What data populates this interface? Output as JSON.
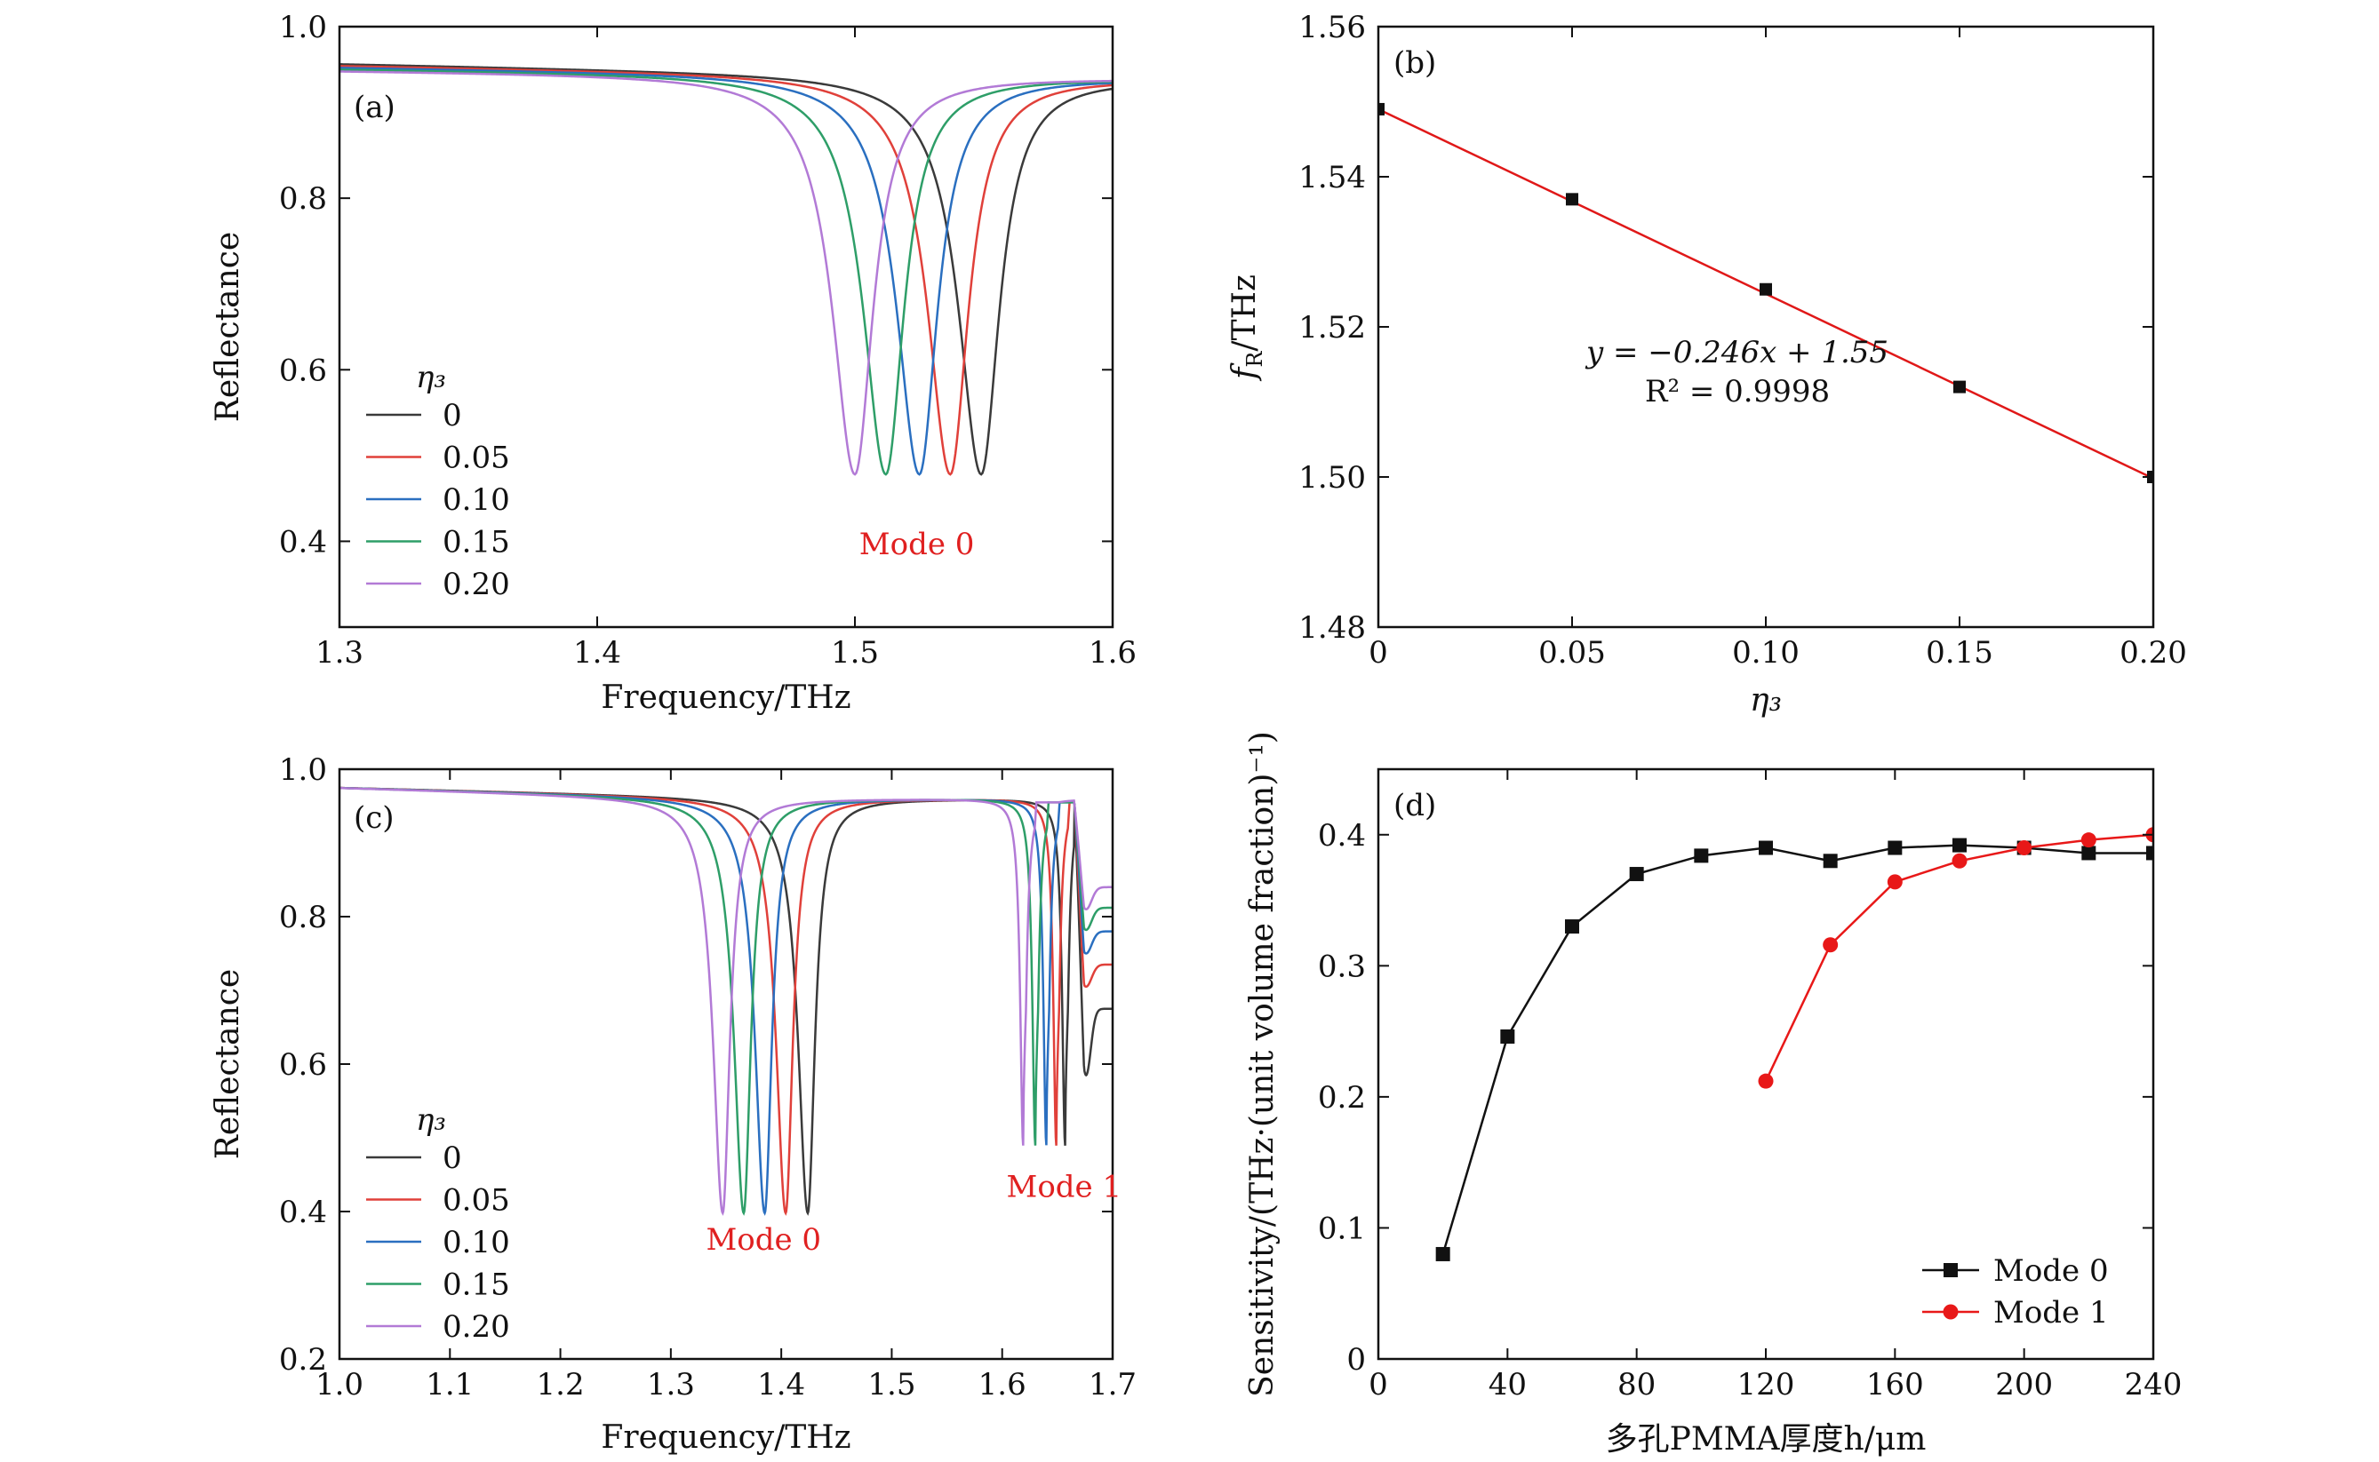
{
  "chart_data": [
    {
      "panel": "(a)",
      "type": "line",
      "xlabel": "Frequency/THz",
      "ylabel": "Reflectance",
      "xlim": [
        1.3,
        1.6
      ],
      "ylim": [
        0.3,
        1.0
      ],
      "xticks": [
        1.3,
        1.4,
        1.5,
        1.6
      ],
      "xtick_labels": [
        "1.3",
        "1.4",
        "1.5",
        "1.6"
      ],
      "yticks": [
        0.4,
        0.6,
        0.8,
        1.0
      ],
      "ytick_labels": [
        "0.4",
        "0.6",
        "0.8",
        "1.0"
      ],
      "legend_title": "η₃",
      "legend_position": "bottom-left",
      "annotations": [
        {
          "text": "Mode 0",
          "x": 1.524,
          "y": 0.385,
          "color": "#e02020"
        }
      ],
      "series": [
        {
          "name": "0",
          "color": "#3a3a3a",
          "base_left": 0.957,
          "base_right": 0.94,
          "dip_center": 1.549,
          "dip_min": 0.478,
          "width_left": 0.0105,
          "width_right": 0.0085
        },
        {
          "name": "0.05",
          "color": "#e0403a",
          "base_left": 0.955,
          "base_right": 0.94,
          "dip_center": 1.537,
          "dip_min": 0.478,
          "width_left": 0.0105,
          "width_right": 0.0085
        },
        {
          "name": "0.10",
          "color": "#2a6fc0",
          "base_left": 0.953,
          "base_right": 0.94,
          "dip_center": 1.525,
          "dip_min": 0.478,
          "width_left": 0.0105,
          "width_right": 0.0085
        },
        {
          "name": "0.15",
          "color": "#2e9e68",
          "base_left": 0.951,
          "base_right": 0.94,
          "dip_center": 1.512,
          "dip_min": 0.478,
          "width_left": 0.0105,
          "width_right": 0.0085
        },
        {
          "name": "0.20",
          "color": "#b27ad6",
          "base_left": 0.949,
          "base_right": 0.94,
          "dip_center": 1.5,
          "dip_min": 0.478,
          "width_left": 0.0105,
          "width_right": 0.0085
        }
      ]
    },
    {
      "panel": "(b)",
      "type": "scatter",
      "xlabel": "η₃",
      "ylabel_main": "f",
      "ylabel_sub": "R",
      "ylabel_unit": "/THz",
      "xlim": [
        0,
        0.2
      ],
      "ylim": [
        1.48,
        1.56
      ],
      "xticks": [
        0,
        0.05,
        0.1,
        0.15,
        0.2
      ],
      "xtick_labels": [
        "0",
        "0.05",
        "0.10",
        "0.15",
        "0.20"
      ],
      "yticks": [
        1.48,
        1.5,
        1.52,
        1.54,
        1.56
      ],
      "ytick_labels": [
        "1.48",
        "1.50",
        "1.52",
        "1.54",
        "1.56"
      ],
      "x": [
        0,
        0.05,
        0.1,
        0.15,
        0.2
      ],
      "y": [
        1.549,
        1.537,
        1.525,
        1.512,
        1.5
      ],
      "fit_line": {
        "slope": -0.246,
        "intercept": 1.549,
        "color": "#e01818"
      },
      "equation": "y = −0.246x + 1.55",
      "r2_label": "R² = 0.9998"
    },
    {
      "panel": "(c)",
      "type": "line",
      "xlabel": "Frequency/THz",
      "ylabel": "Reflectance",
      "xlim": [
        1.0,
        1.7
      ],
      "ylim": [
        0.2,
        1.0
      ],
      "xticks": [
        1.0,
        1.1,
        1.2,
        1.3,
        1.4,
        1.5,
        1.6,
        1.7
      ],
      "xtick_labels": [
        "1.0",
        "1.1",
        "1.2",
        "1.3",
        "1.4",
        "1.5",
        "1.6",
        "1.7"
      ],
      "yticks": [
        0.2,
        0.4,
        0.6,
        0.8,
        1.0
      ],
      "ytick_labels": [
        "0.2",
        "0.4",
        "0.6",
        "0.8",
        "1.0"
      ],
      "legend_title": "η₃",
      "legend_position": "bottom-left",
      "annotations": [
        {
          "text": "Mode 0",
          "x": 1.384,
          "y": 0.348,
          "color": "#e02020"
        },
        {
          "text": "Mode 1",
          "x": 1.656,
          "y": 0.42,
          "color": "#e02020"
        }
      ],
      "series": [
        {
          "name": "0",
          "color": "#3a3a3a",
          "dip0_center": 1.424,
          "dip1_center": 1.657,
          "tail_end": 0.675
        },
        {
          "name": "0.05",
          "color": "#e0403a",
          "dip0_center": 1.404,
          "dip1_center": 1.649,
          "tail_end": 0.735
        },
        {
          "name": "0.10",
          "color": "#2a6fc0",
          "dip0_center": 1.385,
          "dip1_center": 1.64,
          "tail_end": 0.78
        },
        {
          "name": "0.15",
          "color": "#2e9e68",
          "dip0_center": 1.366,
          "dip1_center": 1.63,
          "tail_end": 0.812
        },
        {
          "name": "0.20",
          "color": "#b27ad6",
          "dip0_center": 1.347,
          "dip1_center": 1.619,
          "tail_end": 0.84
        }
      ],
      "dip0_min": 0.398,
      "dip1_min": 0.49
    },
    {
      "panel": "(d)",
      "type": "line",
      "xlabel": "多孔PMMA厚度h/μm",
      "ylabel": "Sensitivity/(THz·(unit volume fraction)⁻¹)",
      "xlim": [
        0,
        240
      ],
      "ylim": [
        0,
        0.45
      ],
      "xticks": [
        0,
        40,
        80,
        120,
        160,
        200,
        240
      ],
      "xtick_labels": [
        "0",
        "40",
        "80",
        "120",
        "160",
        "200",
        "240"
      ],
      "yticks": [
        0,
        0.1,
        0.2,
        0.3,
        0.4
      ],
      "ytick_labels": [
        "0",
        "0.1",
        "0.2",
        "0.3",
        "0.4"
      ],
      "legend_position": "bottom-right",
      "series": [
        {
          "name": "Mode 0",
          "color": "#111111",
          "marker": "square",
          "x": [
            20,
            40,
            60,
            80,
            100,
            120,
            140,
            160,
            180,
            200,
            220,
            240
          ],
          "y": [
            0.08,
            0.246,
            0.33,
            0.37,
            0.384,
            0.39,
            0.38,
            0.39,
            0.392,
            0.39,
            0.386,
            0.386
          ]
        },
        {
          "name": "Mode 1",
          "color": "#e81818",
          "marker": "circle",
          "x": [
            120,
            140,
            160,
            180,
            200,
            220,
            240
          ],
          "y": [
            0.212,
            0.316,
            0.364,
            0.38,
            0.39,
            0.396,
            0.4
          ]
        }
      ]
    }
  ]
}
